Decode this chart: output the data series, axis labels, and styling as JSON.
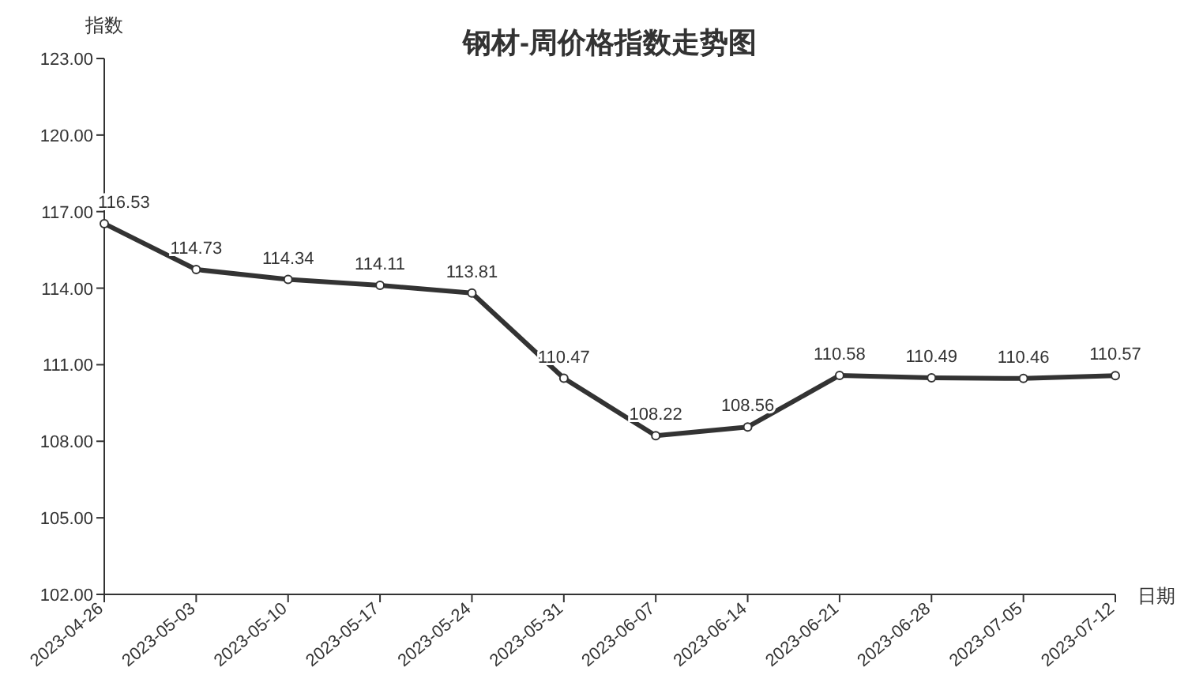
{
  "chart_data": {
    "type": "line",
    "title": "钢材-周价格指数走势图",
    "ylabel": "指数",
    "xlabel": "日期",
    "categories": [
      "2023-04-26",
      "2023-05-03",
      "2023-05-10",
      "2023-05-17",
      "2023-05-24",
      "2023-05-31",
      "2023-06-07",
      "2023-06-14",
      "2023-06-21",
      "2023-06-28",
      "2023-07-05",
      "2023-07-12"
    ],
    "series": [
      {
        "color": "#333333",
        "values": [
          116.53,
          114.73,
          114.34,
          114.11,
          113.81,
          110.47,
          108.22,
          108.56,
          110.58,
          110.49,
          110.46,
          110.57
        ]
      }
    ],
    "ylim": [
      102,
      123
    ],
    "yticks": [
      {
        "value": 102,
        "label": "102.00"
      },
      {
        "value": 105,
        "label": "105.00"
      },
      {
        "value": 108,
        "label": "108.00"
      },
      {
        "value": 111,
        "label": "111.00"
      },
      {
        "value": 114,
        "label": "114.00"
      },
      {
        "value": 117,
        "label": "117.00"
      },
      {
        "value": 120,
        "label": "120.00"
      },
      {
        "value": 123,
        "label": "123.00"
      }
    ],
    "grid": false,
    "marker": "circle",
    "line_style": "solid",
    "data_labels": true
  }
}
